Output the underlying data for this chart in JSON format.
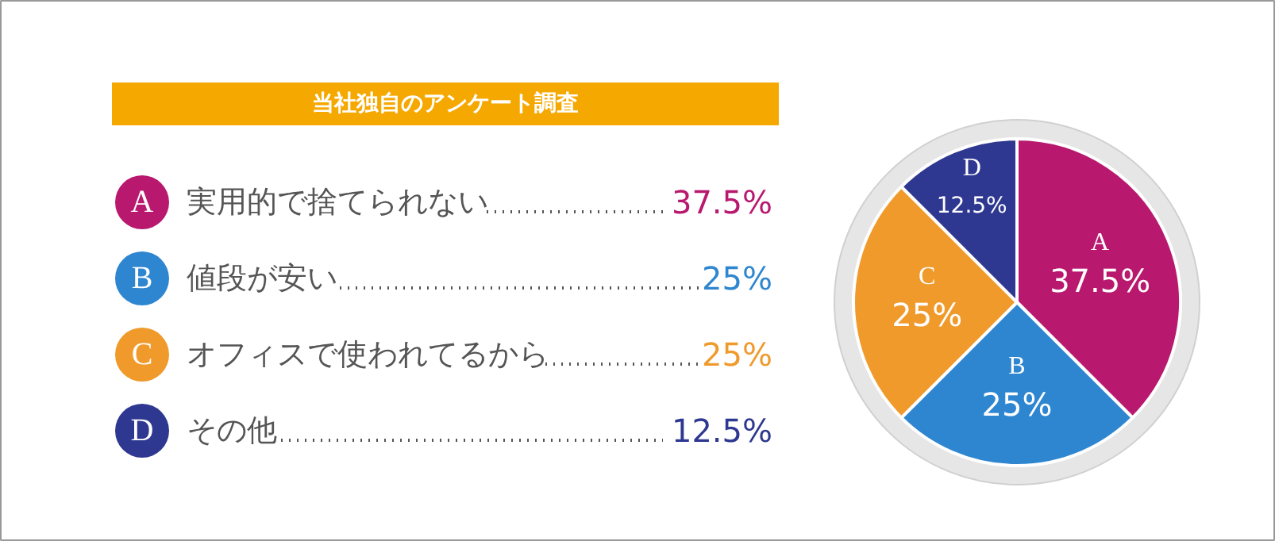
{
  "chart_data": {
    "type": "pie",
    "title": "当社独自のアンケート調査",
    "categories": [
      "実用的で捨てられない",
      "値段が安い",
      "オフィスで使われてるから",
      "その他"
    ],
    "values": [
      37.5,
      25,
      25,
      12.5
    ],
    "colors": [
      "#b8196f",
      "#2f86d0",
      "#f09a2c",
      "#2e3890"
    ],
    "value_labels": [
      "37.5%",
      "25%",
      "25%",
      "12.5%"
    ],
    "annotations": [
      "A",
      "B",
      "C",
      "D"
    ],
    "legend": "left"
  }
}
